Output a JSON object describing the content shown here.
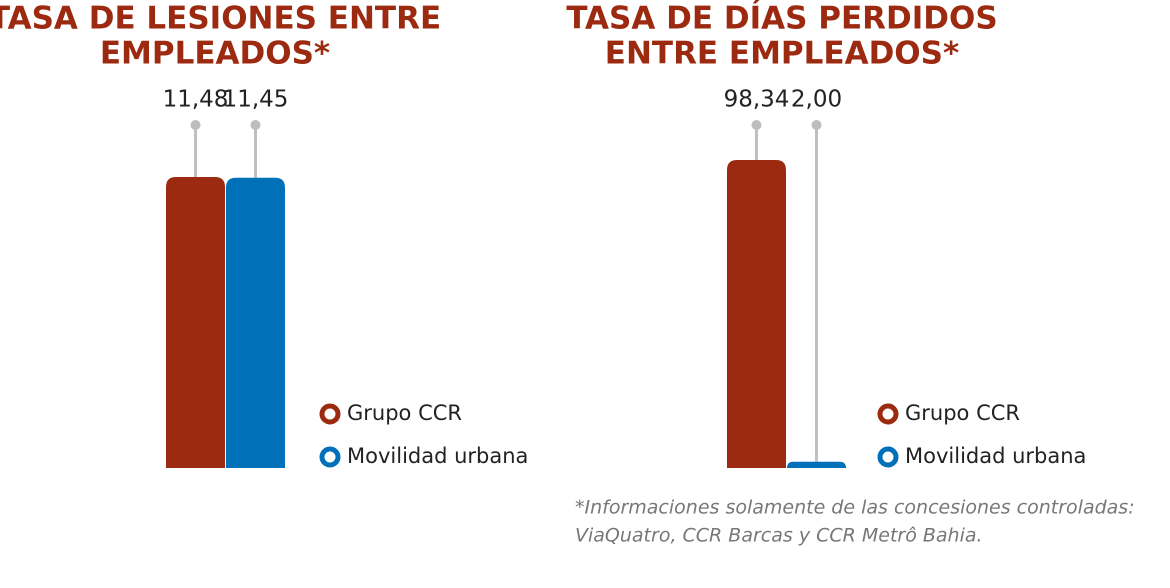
{
  "chart_data": [
    {
      "type": "bar",
      "title": [
        "TASA DE LESIONES ENTRE",
        "EMPLEADOS*"
      ],
      "series": [
        {
          "name": "Grupo CCR",
          "color": "#9c2a10",
          "values": [
            11.48
          ],
          "value_labels": [
            "11,48"
          ]
        },
        {
          "name": "Movilidad urbana",
          "color": "#0070b8",
          "values": [
            11.45
          ],
          "value_labels": [
            "11,45"
          ]
        }
      ]
    },
    {
      "type": "bar",
      "title": [
        "TASA DE DÍAS PERDIDOS",
        "ENTRE EMPLEADOS*"
      ],
      "series": [
        {
          "name": "Grupo CCR",
          "color": "#9c2a10",
          "values": [
            98.34
          ],
          "value_labels": [
            "98,34"
          ]
        },
        {
          "name": "Movilidad urbana",
          "color": "#0070b8",
          "values": [
            2.0
          ],
          "value_labels": [
            "2,00"
          ]
        }
      ]
    }
  ],
  "footnote": [
    "*Informaciones solamente de las concesiones controladas:",
    "ViaQuatro, CCR Barcas y CCR Metrô Bahia."
  ]
}
